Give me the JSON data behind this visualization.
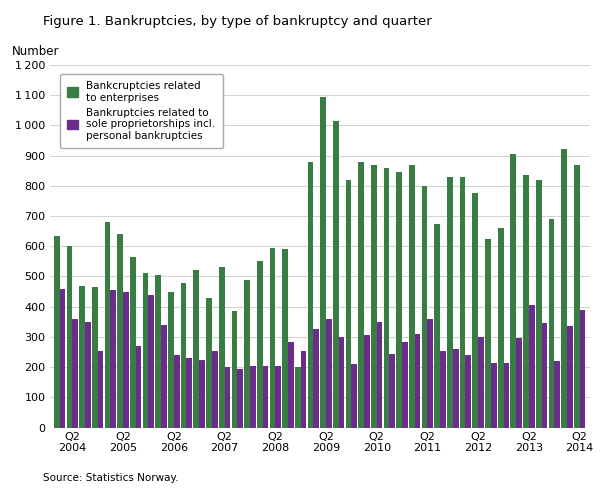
{
  "title": "Figure 1. Bankruptcies, by type of bankruptcy and quarter",
  "ylabel": "Number",
  "source": "Source: Statistics Norway.",
  "ylim": [
    0,
    1200
  ],
  "yticks": [
    0,
    100,
    200,
    300,
    400,
    500,
    600,
    700,
    800,
    900,
    1000,
    1100,
    1200
  ],
  "green_color": "#3a7d44",
  "purple_color": "#6b2d8b",
  "legend_green": "Bankcruptcies related\nto enterprises",
  "legend_purple": "Bankruptcies related to\nsole proprietorships incl.\npersonal bankruptcies",
  "xtick_positions_q2": [
    1,
    5,
    9,
    13,
    17,
    21,
    25,
    29,
    33,
    37,
    41
  ],
  "xtick_labels": [
    "Q2\n2004",
    "Q2\n2005",
    "Q2\n2006",
    "Q2\n2007",
    "Q2\n2008",
    "Q2\n2009",
    "Q2\n2010",
    "Q2\n2011",
    "Q2\n2012",
    "Q2\n2013",
    "Q2\n2014"
  ],
  "enterprises": [
    635,
    600,
    470,
    465,
    680,
    640,
    565,
    510,
    505,
    450,
    480,
    520,
    430,
    530,
    385,
    490,
    550,
    595,
    590,
    200,
    880,
    1095,
    1015,
    820,
    880,
    870,
    860,
    845,
    870,
    800,
    675,
    830,
    830,
    775,
    625,
    660,
    905,
    835,
    820,
    690,
    920,
    870
  ],
  "sole_proprietors": [
    460,
    360,
    350,
    255,
    455,
    450,
    270,
    440,
    340,
    240,
    230,
    225,
    255,
    200,
    195,
    205,
    205,
    205,
    285,
    255,
    325,
    360,
    300,
    210,
    305,
    350,
    245,
    285,
    310,
    360,
    255,
    260,
    240,
    300,
    215,
    215,
    295,
    405,
    345,
    220,
    335,
    390
  ],
  "figsize": [
    6.1,
    4.88
  ],
  "dpi": 100
}
